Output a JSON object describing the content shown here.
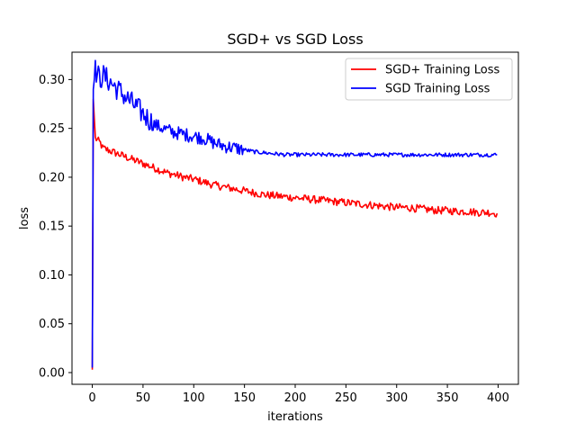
{
  "chart_data": {
    "type": "line",
    "title": "SGD+ vs SGD Loss",
    "xlabel": "iterations",
    "ylabel": "loss",
    "xlim": [
      -20,
      420
    ],
    "ylim": [
      -0.012,
      0.328
    ],
    "xticks": [
      0,
      50,
      100,
      150,
      200,
      250,
      300,
      350,
      400
    ],
    "yticks": [
      0.0,
      0.05,
      0.1,
      0.15,
      0.2,
      0.25,
      0.3
    ],
    "ytick_labels": [
      "0.00",
      "0.05",
      "0.10",
      "0.15",
      "0.20",
      "0.25",
      "0.30"
    ],
    "grid": false,
    "legend_position": "top-right",
    "series": [
      {
        "name": "SGD+ Training Loss",
        "color": "#ff0000",
        "points": [
          [
            0,
            0.003
          ],
          [
            1,
            0.28
          ],
          [
            3,
            0.24
          ],
          [
            5,
            0.238
          ],
          [
            8,
            0.235
          ],
          [
            10,
            0.23
          ],
          [
            15,
            0.228
          ],
          [
            20,
            0.226
          ],
          [
            25,
            0.224
          ],
          [
            30,
            0.222
          ],
          [
            35,
            0.22
          ],
          [
            40,
            0.218
          ],
          [
            45,
            0.216
          ],
          [
            50,
            0.214
          ],
          [
            55,
            0.212
          ],
          [
            60,
            0.21
          ],
          [
            65,
            0.208
          ],
          [
            70,
            0.206
          ],
          [
            75,
            0.204
          ],
          [
            80,
            0.203
          ],
          [
            90,
            0.2
          ],
          [
            100,
            0.198
          ],
          [
            110,
            0.195
          ],
          [
            120,
            0.192
          ],
          [
            130,
            0.19
          ],
          [
            140,
            0.188
          ],
          [
            150,
            0.186
          ],
          [
            160,
            0.184
          ],
          [
            170,
            0.182
          ],
          [
            180,
            0.181
          ],
          [
            190,
            0.18
          ],
          [
            200,
            0.179
          ],
          [
            210,
            0.178
          ],
          [
            220,
            0.177
          ],
          [
            230,
            0.176
          ],
          [
            240,
            0.175
          ],
          [
            250,
            0.174
          ],
          [
            260,
            0.173
          ],
          [
            270,
            0.172
          ],
          [
            280,
            0.171
          ],
          [
            290,
            0.17
          ],
          [
            300,
            0.169
          ],
          [
            310,
            0.169
          ],
          [
            320,
            0.168
          ],
          [
            330,
            0.167
          ],
          [
            340,
            0.166
          ],
          [
            350,
            0.166
          ],
          [
            360,
            0.165
          ],
          [
            370,
            0.165
          ],
          [
            380,
            0.164
          ],
          [
            390,
            0.164
          ],
          [
            399,
            0.163
          ]
        ]
      },
      {
        "name": "SGD Training Loss",
        "color": "#0000ff",
        "points": [
          [
            0,
            0.005
          ],
          [
            1,
            0.29
          ],
          [
            3,
            0.31
          ],
          [
            5,
            0.305
          ],
          [
            8,
            0.3
          ],
          [
            10,
            0.305
          ],
          [
            15,
            0.3
          ],
          [
            20,
            0.295
          ],
          [
            25,
            0.29
          ],
          [
            30,
            0.285
          ],
          [
            35,
            0.28
          ],
          [
            40,
            0.275
          ],
          [
            45,
            0.27
          ],
          [
            50,
            0.265
          ],
          [
            55,
            0.26
          ],
          [
            60,
            0.255
          ],
          [
            65,
            0.252
          ],
          [
            70,
            0.25
          ],
          [
            75,
            0.248
          ],
          [
            80,
            0.246
          ],
          [
            90,
            0.244
          ],
          [
            100,
            0.242
          ],
          [
            110,
            0.24
          ],
          [
            120,
            0.235
          ],
          [
            130,
            0.232
          ],
          [
            140,
            0.23
          ],
          [
            150,
            0.228
          ],
          [
            160,
            0.226
          ],
          [
            170,
            0.225
          ],
          [
            180,
            0.224
          ],
          [
            190,
            0.223
          ],
          [
            200,
            0.223
          ],
          [
            220,
            0.223
          ],
          [
            240,
            0.223
          ],
          [
            260,
            0.223
          ],
          [
            280,
            0.223
          ],
          [
            300,
            0.223
          ],
          [
            320,
            0.223
          ],
          [
            340,
            0.223
          ],
          [
            360,
            0.223
          ],
          [
            380,
            0.223
          ],
          [
            399,
            0.223
          ]
        ]
      }
    ]
  }
}
